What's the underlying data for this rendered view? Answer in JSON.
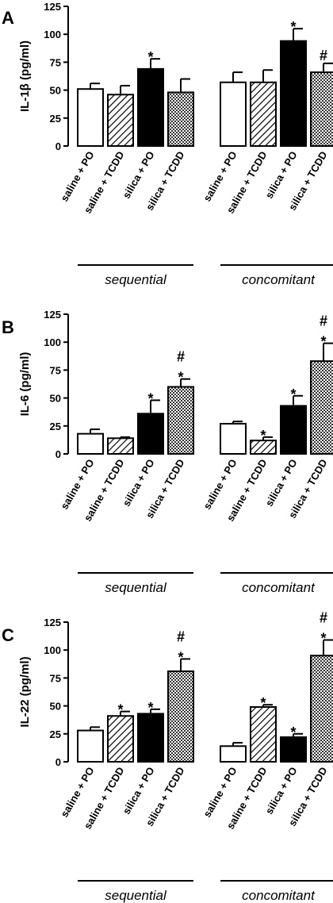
{
  "figure": {
    "colors": {
      "axis": "#000000",
      "saline_po": "#ffffff",
      "silica_po": "#000000",
      "hatch": "#000000",
      "crosshatch": "#555555"
    }
  },
  "chart_data": [
    {
      "type": "bar",
      "panel": "A",
      "ylabel": "IL-1β (pg/ml)",
      "ylim": [
        0,
        125
      ],
      "yticks": [
        "0",
        "25",
        "50",
        "75",
        "100",
        "125"
      ],
      "grid": false,
      "categories": [
        "saline + PO",
        "saline + TCDD",
        "silica + PO",
        "silica + TCDD"
      ],
      "fills": [
        "white",
        "hatch",
        "black",
        "crosshatch"
      ],
      "groups": [
        {
          "label": "sequential",
          "values": [
            51,
            46,
            69,
            48
          ],
          "errors": [
            5,
            8,
            9,
            12
          ],
          "marks": [
            "",
            "",
            "*",
            ""
          ]
        },
        {
          "label": "concomitant",
          "values": [
            57,
            57,
            94,
            66
          ],
          "errors": [
            9,
            11,
            11,
            8
          ],
          "marks": [
            "",
            "",
            "*",
            "#"
          ]
        }
      ]
    },
    {
      "type": "bar",
      "panel": "B",
      "ylabel": "IL-6 (pg/ml)",
      "ylim": [
        0,
        125
      ],
      "yticks": [
        "0",
        "25",
        "50",
        "75",
        "100",
        "125"
      ],
      "grid": false,
      "categories": [
        "saline + PO",
        "saline + TCDD",
        "silica + PO",
        "silica + TCDD"
      ],
      "fills": [
        "white",
        "hatch",
        "black",
        "crosshatch"
      ],
      "groups": [
        {
          "label": "sequential",
          "values": [
            18,
            14,
            36,
            60
          ],
          "errors": [
            4,
            1,
            12,
            7
          ],
          "marks": [
            "",
            "",
            "*",
            "*#"
          ]
        },
        {
          "label": "concomitant",
          "values": [
            27,
            12,
            43,
            83
          ],
          "errors": [
            2,
            3,
            9,
            16
          ],
          "marks": [
            "",
            "*",
            "*",
            "*#"
          ]
        }
      ]
    },
    {
      "type": "bar",
      "panel": "C",
      "ylabel": "IL-22 (pg/ml)",
      "ylim": [
        0,
        125
      ],
      "yticks": [
        "0",
        "25",
        "50",
        "75",
        "100",
        "125"
      ],
      "grid": false,
      "categories": [
        "saline + PO",
        "saline + TCDD",
        "silica + PO",
        "silica + TCDD"
      ],
      "fills": [
        "white",
        "hatch",
        "black",
        "crosshatch"
      ],
      "groups": [
        {
          "label": "sequential",
          "values": [
            28,
            41,
            43,
            81
          ],
          "errors": [
            3,
            4,
            4,
            11
          ],
          "marks": [
            "",
            "*",
            "*",
            "*#"
          ]
        },
        {
          "label": "concomitant",
          "values": [
            14,
            49,
            22,
            95
          ],
          "errors": [
            3,
            2,
            3,
            14
          ],
          "marks": [
            "",
            "*",
            "*",
            "*#"
          ]
        }
      ]
    }
  ]
}
